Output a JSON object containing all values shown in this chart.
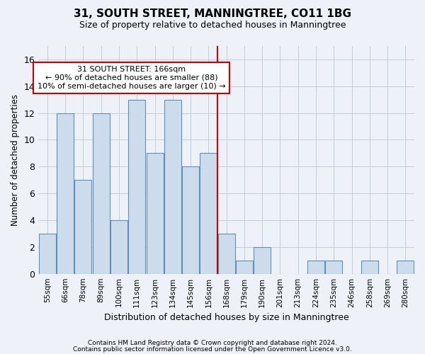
{
  "title1": "31, SOUTH STREET, MANNINGTREE, CO11 1BG",
  "title2": "Size of property relative to detached houses in Manningtree",
  "xlabel": "Distribution of detached houses by size in Manningtree",
  "ylabel": "Number of detached properties",
  "categories": [
    "55sqm",
    "66sqm",
    "78sqm",
    "89sqm",
    "100sqm",
    "111sqm",
    "123sqm",
    "134sqm",
    "145sqm",
    "156sqm",
    "168sqm",
    "179sqm",
    "190sqm",
    "201sqm",
    "213sqm",
    "224sqm",
    "235sqm",
    "246sqm",
    "258sqm",
    "269sqm",
    "280sqm"
  ],
  "values": [
    3,
    12,
    7,
    12,
    4,
    13,
    9,
    13,
    8,
    9,
    3,
    1,
    2,
    0,
    0,
    1,
    1,
    0,
    1,
    0,
    1
  ],
  "bar_color": "#ccdcec",
  "bar_edge_color": "#6090b8",
  "vline_x_idx": 10,
  "vline_color": "#cc0000",
  "annotation_text": "31 SOUTH STREET: 166sqm\n← 90% of detached houses are smaller (88)\n10% of semi-detached houses are larger (10) →",
  "annotation_box_color": "#ffffff",
  "annotation_edge_color": "#cc0000",
  "ylim": [
    0,
    17
  ],
  "yticks": [
    0,
    2,
    4,
    6,
    8,
    10,
    12,
    14,
    16
  ],
  "footer1": "Contains HM Land Registry data © Crown copyright and database right 2024.",
  "footer2": "Contains public sector information licensed under the Open Government Licence v3.0.",
  "background_color": "#eef2f8",
  "grid_color": "#c4ccd8"
}
